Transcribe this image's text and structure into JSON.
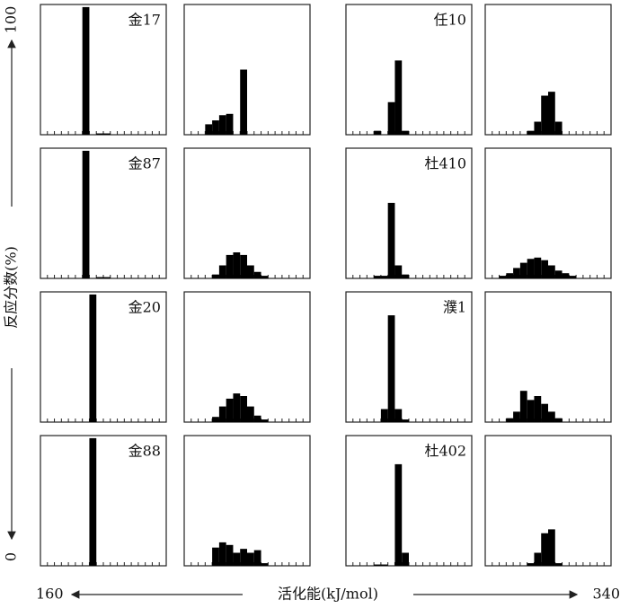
{
  "axes": {
    "xlabel": "活化能(kJ/mol)",
    "ylabel": "反应分数(%)",
    "xlim": [
      160,
      340
    ],
    "ylim": [
      0,
      100
    ],
    "bins": [
      160,
      170,
      180,
      190,
      200,
      210,
      220,
      230,
      240,
      250,
      260,
      270,
      280,
      290,
      300,
      310,
      320,
      330,
      340
    ]
  },
  "chart_data": [
    {
      "type": "histogram",
      "title": "金17",
      "values": [
        0,
        0,
        0,
        0,
        0,
        0,
        98,
        0,
        1,
        1,
        0,
        0,
        0,
        0,
        0,
        0,
        0,
        0
      ]
    },
    {
      "type": "histogram",
      "values": [
        0,
        0,
        0,
        8,
        11,
        15,
        16,
        0,
        50,
        0,
        0,
        0,
        0,
        0,
        0,
        0,
        0,
        0
      ]
    },
    {
      "type": "histogram",
      "title": "任10",
      "values": [
        0,
        0,
        0,
        0,
        3,
        0,
        25,
        57,
        3,
        0,
        0,
        0,
        0,
        0,
        0,
        0,
        0,
        0
      ]
    },
    {
      "type": "histogram",
      "values": [
        0,
        0,
        0,
        0,
        0,
        0,
        3,
        10,
        30,
        33,
        10,
        0,
        0,
        0,
        0,
        0,
        0,
        0
      ]
    },
    {
      "type": "histogram",
      "title": "金87",
      "values": [
        0,
        0,
        0,
        0,
        0,
        0,
        98,
        0,
        1,
        1,
        0,
        0,
        0,
        0,
        0,
        0,
        0,
        0
      ]
    },
    {
      "type": "histogram",
      "values": [
        0,
        0,
        0,
        0,
        3,
        10,
        18,
        20,
        18,
        10,
        5,
        2,
        0,
        0,
        0,
        0,
        0,
        0
      ]
    },
    {
      "type": "histogram",
      "title": "杜410",
      "values": [
        0,
        0,
        0,
        0,
        2,
        2,
        58,
        10,
        3,
        0,
        0,
        0,
        0,
        0,
        0,
        0,
        0,
        0
      ]
    },
    {
      "type": "histogram",
      "values": [
        0,
        0,
        2,
        4,
        8,
        12,
        15,
        16,
        14,
        10,
        6,
        4,
        2,
        0,
        0,
        0,
        0,
        0
      ]
    },
    {
      "type": "histogram",
      "title": "金20",
      "values": [
        0,
        0,
        0,
        0,
        0,
        0,
        0,
        98,
        0,
        0,
        0,
        0,
        0,
        0,
        0,
        0,
        0,
        0
      ]
    },
    {
      "type": "histogram",
      "values": [
        0,
        0,
        0,
        0,
        4,
        12,
        18,
        22,
        20,
        12,
        5,
        2,
        0,
        0,
        0,
        0,
        0,
        0
      ]
    },
    {
      "type": "histogram",
      "title": "濮1",
      "values": [
        0,
        0,
        0,
        0,
        0,
        10,
        82,
        10,
        2,
        0,
        0,
        0,
        0,
        0,
        0,
        0,
        0,
        0
      ]
    },
    {
      "type": "histogram",
      "values": [
        0,
        0,
        0,
        3,
        8,
        24,
        17,
        20,
        14,
        8,
        3,
        0,
        0,
        0,
        0,
        0,
        0,
        0
      ]
    },
    {
      "type": "histogram",
      "title": "金88",
      "values": [
        0,
        0,
        0,
        0,
        0,
        0,
        0,
        98,
        0,
        0,
        0,
        0,
        0,
        0,
        0,
        0,
        0,
        0
      ]
    },
    {
      "type": "histogram",
      "values": [
        0,
        0,
        0,
        0,
        14,
        18,
        16,
        10,
        13,
        10,
        12,
        2,
        0,
        0,
        0,
        0,
        0,
        0
      ]
    },
    {
      "type": "histogram",
      "title": "杜402",
      "values": [
        0,
        0,
        0,
        0,
        1,
        1,
        0,
        78,
        10,
        0,
        0,
        0,
        0,
        0,
        0,
        0,
        0,
        0
      ]
    },
    {
      "type": "histogram",
      "values": [
        0,
        0,
        0,
        0,
        0,
        0,
        2,
        10,
        25,
        28,
        2,
        0,
        0,
        0,
        0,
        0,
        0,
        0
      ]
    }
  ]
}
